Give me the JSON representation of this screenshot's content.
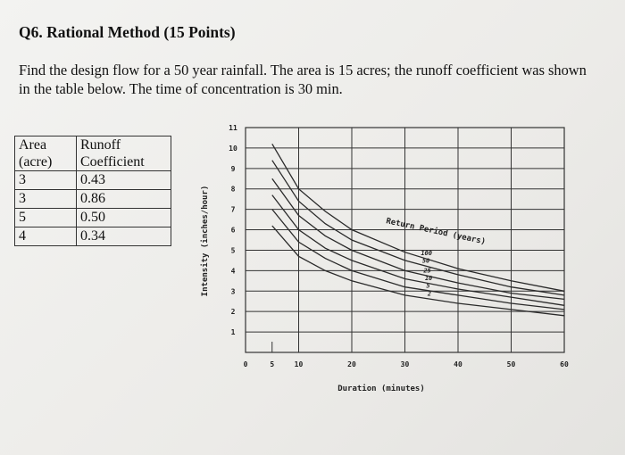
{
  "question": {
    "title": "Q6. Rational Method (15 Points)",
    "line1": "Find the design flow for a 50 year rainfall. The area is 15 acres; the runoff coefficient was shown",
    "line2": "in the table below. The time of concentration is 30 min."
  },
  "table": {
    "header_area_1": "Area",
    "header_area_2": "(acre)",
    "header_coef_1": "Runoff",
    "header_coef_2": "Coefficient",
    "rows": [
      {
        "area": "3",
        "coef": "0.43"
      },
      {
        "area": "3",
        "coef": "0.86"
      },
      {
        "area": "5",
        "coef": "0.50"
      },
      {
        "area": "4",
        "coef": "0.34"
      }
    ]
  },
  "chart_data": {
    "type": "line",
    "xlabel": "Duration (minutes)",
    "ylabel": "Intensity (inches/hour)",
    "xlim": [
      0,
      60
    ],
    "ylim": [
      0,
      11
    ],
    "x_ticks": [
      "0",
      "5",
      "10",
      "20",
      "30",
      "40",
      "50",
      "60"
    ],
    "y_ticks": [
      "1",
      "2",
      "3",
      "4",
      "5",
      "6",
      "7",
      "8",
      "9",
      "10",
      "11"
    ],
    "annotation": "Return Period (years)",
    "grid": true,
    "x": [
      5,
      10,
      15,
      20,
      30,
      40,
      50,
      60
    ],
    "series": [
      {
        "name": "100",
        "values": [
          10.2,
          8.0,
          6.9,
          6.0,
          4.9,
          4.1,
          3.5,
          3.0
        ]
      },
      {
        "name": "50",
        "values": [
          9.4,
          7.4,
          6.3,
          5.5,
          4.5,
          3.8,
          3.2,
          2.8
        ]
      },
      {
        "name": "25",
        "values": [
          8.5,
          6.7,
          5.7,
          5.0,
          4.0,
          3.4,
          2.9,
          2.6
        ]
      },
      {
        "name": "10",
        "values": [
          7.7,
          6.0,
          5.1,
          4.5,
          3.6,
          3.1,
          2.7,
          2.3
        ]
      },
      {
        "name": "5",
        "values": [
          7.0,
          5.4,
          4.6,
          4.0,
          3.2,
          2.8,
          2.4,
          2.1
        ]
      },
      {
        "name": "2",
        "values": [
          6.2,
          4.7,
          4.0,
          3.5,
          2.8,
          2.4,
          2.1,
          1.8
        ]
      }
    ]
  }
}
